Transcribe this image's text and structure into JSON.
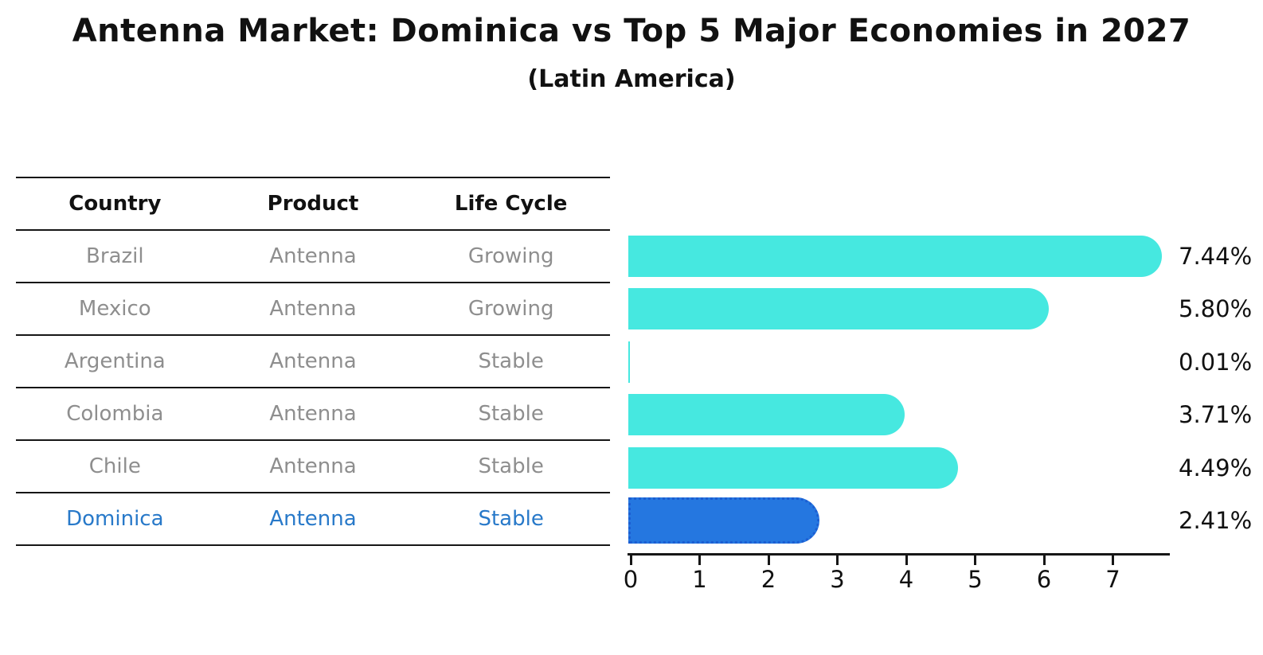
{
  "page": {
    "title": "Antenna Market: Dominica vs Top 5 Major Economies in 2027",
    "subtitle": "(Latin America)"
  },
  "table": {
    "headers": [
      "Country",
      "Product",
      "Life Cycle"
    ],
    "rows": [
      {
        "country": "Brazil",
        "product": "Antenna",
        "life_cycle": "Growing",
        "highlighted": false
      },
      {
        "country": "Mexico",
        "product": "Antenna",
        "life_cycle": "Growing",
        "highlighted": false
      },
      {
        "country": "Argentina",
        "product": "Antenna",
        "life_cycle": "Stable",
        "highlighted": false
      },
      {
        "country": "Colombia",
        "product": "Antenna",
        "life_cycle": "Stable",
        "highlighted": false
      },
      {
        "country": "Chile",
        "product": "Antenna",
        "life_cycle": "Stable",
        "highlighted": false
      },
      {
        "country": "Dominica",
        "product": "Antenna",
        "life_cycle": "Stable",
        "highlighted": true
      }
    ]
  },
  "chart_data": {
    "type": "bar",
    "orientation": "horizontal",
    "title": "Antenna Market: Dominica vs Top 5 Major Economies in 2027",
    "subtitle": "(Latin America)",
    "categories": [
      "Brazil",
      "Mexico",
      "Argentina",
      "Colombia",
      "Chile",
      "Dominica"
    ],
    "values": [
      7.44,
      5.8,
      0.01,
      3.71,
      4.49,
      2.41
    ],
    "value_labels": [
      "7.44%",
      "5.80%",
      "0.01%",
      "3.71%",
      "4.49%",
      "2.41%"
    ],
    "x_tick_labels": [
      "0",
      "1",
      "2",
      "3",
      "4",
      "5",
      "6",
      "7"
    ],
    "xlim": [
      0,
      7.8
    ],
    "grid": false,
    "legend": "none",
    "bar_color": "#46e8e0",
    "highlight_bar_color": "#2577e0",
    "highlight_border_color": "#1c5ed2",
    "highlight_index": 5,
    "muted_text_color": "#8e8e8e",
    "highlight_text_color": "#2879c9"
  }
}
